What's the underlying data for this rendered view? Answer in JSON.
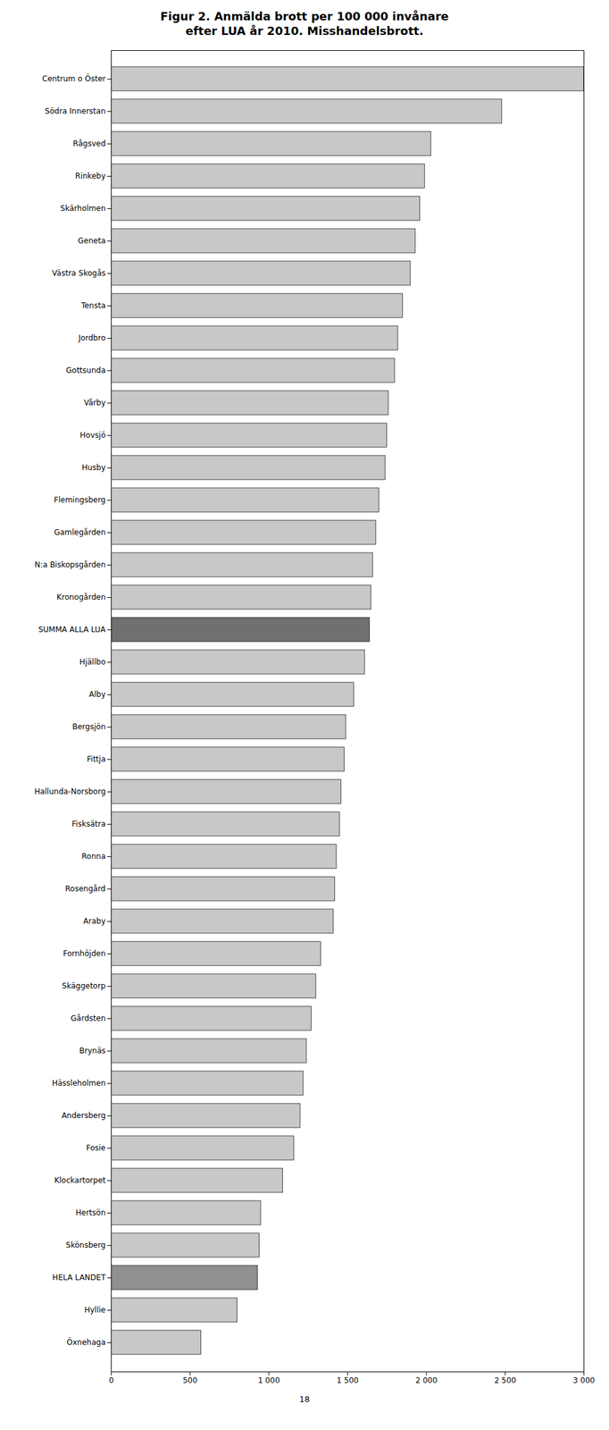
{
  "chart_data": {
    "type": "bar",
    "orientation": "horizontal",
    "title": "Figur 2. Anmälda brott per 100 000 invånare\nefter LUA år 2010. Misshandelsbrott.",
    "categories": [
      "Centrum o Öster",
      "Södra Innerstan",
      "Rågsved",
      "Rinkeby",
      "Skärholmen",
      "Geneta",
      "Västra Skogås",
      "Tensta",
      "Jordbro",
      "Gottsunda",
      "Vårby",
      "Hovsjö",
      "Husby",
      "Flemingsberg",
      "Gamlegården",
      "N:a Biskopsgården",
      "Kronogården",
      "SUMMA ALLA LUA",
      "Hjällbo",
      "Alby",
      "Bergsjön",
      "Fittja",
      "Hallunda-Norsborg",
      "Fisksätra",
      "Ronna",
      "Rosengård",
      "Araby",
      "Fornhöjden",
      "Skäggetorp",
      "Gårdsten",
      "Brynäs",
      "Hässleholmen",
      "Andersberg",
      "Fosie",
      "Klockartorpet",
      "Hertsön",
      "Skönsberg",
      "HELA LANDET",
      "Hyllie",
      "Öxnehaga"
    ],
    "values": [
      3000,
      2480,
      2030,
      1990,
      1960,
      1930,
      1900,
      1850,
      1820,
      1800,
      1760,
      1750,
      1740,
      1700,
      1680,
      1660,
      1650,
      1640,
      1610,
      1540,
      1490,
      1480,
      1460,
      1450,
      1430,
      1420,
      1410,
      1330,
      1300,
      1270,
      1240,
      1220,
      1200,
      1160,
      1090,
      950,
      940,
      930,
      800,
      570
    ],
    "colors": [
      "#c8c8c8",
      "#c8c8c8",
      "#c8c8c8",
      "#c8c8c8",
      "#c8c8c8",
      "#c8c8c8",
      "#c8c8c8",
      "#c8c8c8",
      "#c8c8c8",
      "#c8c8c8",
      "#c8c8c8",
      "#c8c8c8",
      "#c8c8c8",
      "#c8c8c8",
      "#c8c8c8",
      "#c8c8c8",
      "#c8c8c8",
      "#707070",
      "#c8c8c8",
      "#c8c8c8",
      "#c8c8c8",
      "#c8c8c8",
      "#c8c8c8",
      "#c8c8c8",
      "#c8c8c8",
      "#c8c8c8",
      "#c8c8c8",
      "#c8c8c8",
      "#c8c8c8",
      "#c8c8c8",
      "#c8c8c8",
      "#c8c8c8",
      "#c8c8c8",
      "#c8c8c8",
      "#c8c8c8",
      "#c8c8c8",
      "#c8c8c8",
      "#909090",
      "#c8c8c8",
      "#c8c8c8"
    ],
    "xlim": [
      0,
      3000
    ],
    "xticks": [
      0,
      500,
      {
        "value": 1000,
        "label": "1 000"
      },
      {
        "value": 1500,
        "label": "1 500"
      },
      {
        "value": 2000,
        "label": "2 000"
      },
      {
        "value": 2500,
        "label": "2 500"
      },
      {
        "value": 3000,
        "label": "3 000"
      }
    ],
    "grid": false,
    "annotations": [
      "18"
    ]
  }
}
